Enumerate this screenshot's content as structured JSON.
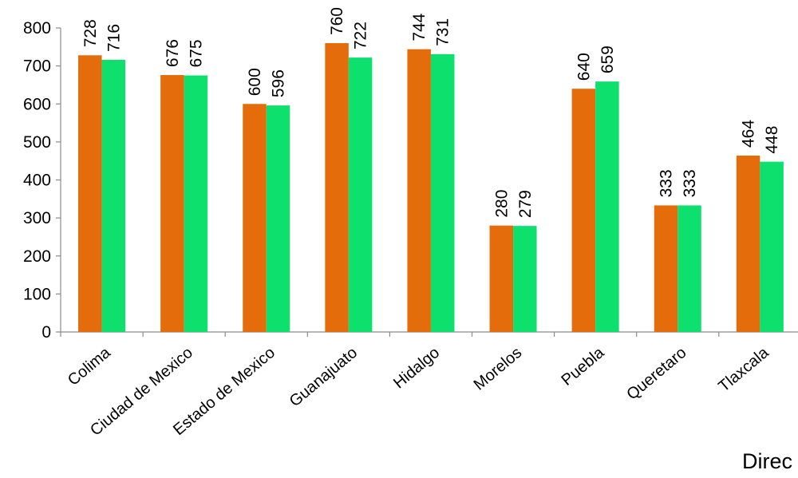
{
  "chart_data": {
    "type": "bar",
    "categories": [
      "Colima",
      "Ciudad de Mexico",
      "Estado de Mexico",
      "Guanajuato",
      "Hidalgo",
      "Morelos",
      "Puebla",
      "Queretaro",
      "Tlaxcala"
    ],
    "series": [
      {
        "values": [
          728,
          676,
          600,
          760,
          744,
          280,
          640,
          333,
          464
        ],
        "color": "#E46C0A"
      },
      {
        "values": [
          716,
          675,
          596,
          722,
          731,
          279,
          659,
          333,
          448
        ],
        "color": "#0EE06E"
      }
    ],
    "ylim": [
      0,
      800
    ],
    "yticks": [
      0,
      100,
      200,
      300,
      400,
      500,
      600,
      700,
      800
    ],
    "grid": false,
    "legend": "none",
    "data_labels": true
  },
  "footer_text": "Direc"
}
